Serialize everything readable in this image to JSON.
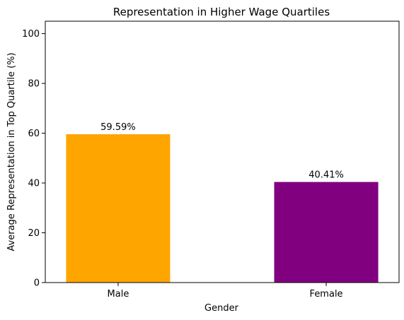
{
  "chart_data": {
    "type": "bar",
    "title": "Representation in Higher Wage Quartiles",
    "xlabel": "Gender",
    "ylabel": "Average Representation in Top Quartile (%)",
    "categories": [
      "Male",
      "Female"
    ],
    "values": [
      59.59,
      40.41
    ],
    "data_labels": [
      "59.59%",
      "40.41%"
    ],
    "colors": [
      "#FFA500",
      "#800080"
    ],
    "ylim": [
      0,
      105
    ],
    "yticks": [
      0,
      20,
      40,
      60,
      80,
      100
    ],
    "grid": false,
    "legend": "none"
  }
}
